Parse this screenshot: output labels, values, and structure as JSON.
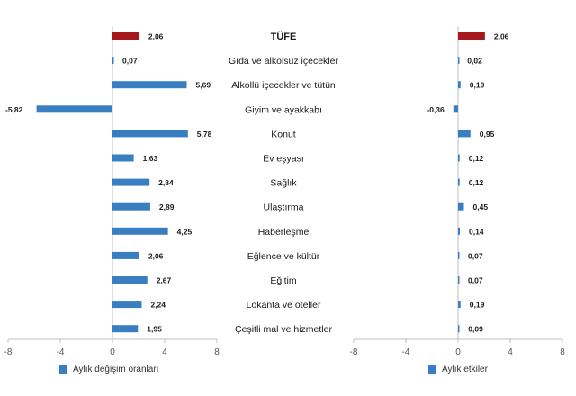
{
  "colors": {
    "total_bar": "#A5161D",
    "bar": "#3A7EC2",
    "axis": "#BFBFBF",
    "text": "#1a1a1a",
    "tick": "#555555"
  },
  "chart_data": [
    {
      "type": "bar",
      "orientation": "horizontal",
      "legend": "Aylık değişim oranları",
      "legend_position": "bottom-left",
      "xlim": [
        -8,
        8
      ],
      "xticks": [
        "-8",
        "-4",
        "0",
        "4",
        "8"
      ],
      "categories": [
        "TÜFE",
        "Gıda ve alkolsüz içecekler",
        "Alkollü içecekler ve tütün",
        "Giyim ve ayakkabı",
        "Konut",
        "Ev eşyası",
        "Sağlık",
        "Ulaştırma",
        "Haberleşme",
        "Eğlence ve kültür",
        "Eğitim",
        "Lokanta ve oteller",
        "Çeşitli mal ve hizmetler"
      ],
      "values": [
        2.06,
        0.07,
        5.69,
        -5.82,
        5.78,
        1.63,
        2.84,
        2.89,
        4.25,
        2.06,
        2.67,
        2.24,
        1.95
      ],
      "labels": [
        "2,06",
        "0,07",
        "5,69",
        "-5,82",
        "5,78",
        "1,63",
        "2,84",
        "2,89",
        "4,25",
        "2,06",
        "2,67",
        "2,24",
        "1,95"
      ],
      "grid": false
    },
    {
      "type": "bar",
      "orientation": "horizontal",
      "legend": "Aylık etkiler",
      "legend_position": "bottom-left",
      "xlim": [
        -8,
        8
      ],
      "xticks": [
        "-8",
        "-4",
        "0",
        "4",
        "8"
      ],
      "categories": [
        "TÜFE",
        "Gıda ve alkolsüz içecekler",
        "Alkollü içecekler ve tütün",
        "Giyim ve ayakkabı",
        "Konut",
        "Ev eşyası",
        "Sağlık",
        "Ulaştırma",
        "Haberleşme",
        "Eğlence ve kültür",
        "Eğitim",
        "Lokanta ve oteller",
        "Çeşitli mal ve hizmetler"
      ],
      "values": [
        2.06,
        0.02,
        0.19,
        -0.36,
        0.95,
        0.12,
        0.12,
        0.45,
        0.14,
        0.07,
        0.07,
        0.19,
        0.09
      ],
      "labels": [
        "2,06",
        "0,02",
        "0,19",
        "-0,36",
        "0,95",
        "0,12",
        "0,12",
        "0,45",
        "0,14",
        "0,07",
        "0,07",
        "0,19",
        "0,09"
      ],
      "grid": false
    }
  ]
}
